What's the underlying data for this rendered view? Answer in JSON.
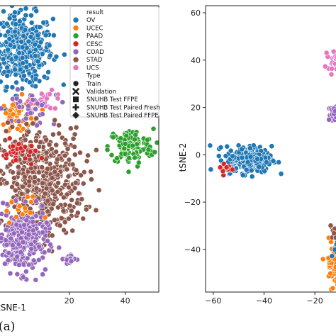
{
  "panel_label": "(a)",
  "chart_data": [
    {
      "type": "scatter",
      "panel": "left",
      "xlabel": "tSNE-1",
      "ylabel": "",
      "xticks": [
        20,
        40
      ],
      "xlim": [
        -5,
        52
      ],
      "ylim": [
        -65,
        65
      ],
      "grid": false,
      "legend": {
        "placement": "top-right",
        "sections": [
          {
            "title": "result",
            "entries": [
              {
                "label": "OV",
                "color": "#1f77b4",
                "marker": "circle"
              },
              {
                "label": "UCEC",
                "color": "#ff7f0e",
                "marker": "circle"
              },
              {
                "label": "PAAD",
                "color": "#2ca02c",
                "marker": "circle"
              },
              {
                "label": "CESC",
                "color": "#d62728",
                "marker": "circle"
              },
              {
                "label": "COAD",
                "color": "#9467bd",
                "marker": "circle"
              },
              {
                "label": "STAD",
                "color": "#8c564b",
                "marker": "circle"
              },
              {
                "label": "UCS",
                "color": "#e377c2",
                "marker": "circle"
              }
            ]
          },
          {
            "title": "Type",
            "entries": [
              {
                "label": "Train",
                "color": "#222222",
                "marker": "circle"
              },
              {
                "label": "Validation",
                "color": "#222222",
                "marker": "x"
              },
              {
                "label": "SNUHB Test FFPE",
                "color": "#222222",
                "marker": "square"
              },
              {
                "label": "SNUHB Test Paired Fresh",
                "color": "#222222",
                "marker": "plus"
              },
              {
                "label": "SNUHB Test Paired FFPE",
                "color": "#222222",
                "marker": "diamond"
              }
            ]
          }
        ]
      },
      "clusters": [
        {
          "series": "OV",
          "color": "#1f77b4",
          "cx": 3,
          "cy": 45,
          "sx": 5.5,
          "sy": 8,
          "n": 420
        },
        {
          "series": "UCEC",
          "color": "#ff7f0e",
          "cx": 2,
          "cy": 15,
          "sx": 3.5,
          "sy": 4,
          "n": 60
        },
        {
          "series": "UCS",
          "color": "#e377c2",
          "cx": 12,
          "cy": 22,
          "sx": 3,
          "sy": 2,
          "n": 25
        },
        {
          "series": "COAD",
          "color": "#9467bd",
          "cx": 5,
          "cy": 18,
          "sx": 4,
          "sy": 4,
          "n": 40
        },
        {
          "series": "PAAD",
          "color": "#2ca02c",
          "cx": 42,
          "cy": 1,
          "sx": 4,
          "sy": 4,
          "n": 120
        },
        {
          "series": "STAD",
          "color": "#8c564b",
          "cx": 10,
          "cy": -15,
          "sx": 7.5,
          "sy": 12,
          "n": 520
        },
        {
          "series": "CESC",
          "color": "#d62728",
          "cx": 2,
          "cy": -2,
          "sx": 3,
          "sy": 3,
          "n": 30
        },
        {
          "series": "COAD",
          "color": "#9467bd",
          "cx": 3,
          "cy": -42,
          "sx": 4.5,
          "sy": 7,
          "n": 280
        },
        {
          "series": "COAD",
          "color": "#9467bd",
          "cx": 20,
          "cy": -50,
          "sx": 1,
          "sy": 1.2,
          "n": 18
        },
        {
          "series": "UCEC",
          "color": "#ff7f0e",
          "cx": 3,
          "cy": -28,
          "sx": 3,
          "sy": 3,
          "n": 15
        }
      ]
    },
    {
      "type": "scatter",
      "panel": "right",
      "xlabel": "",
      "ylabel": "tSNE-2",
      "xticks": [
        -60,
        -40,
        -20
      ],
      "yticks": [
        -40,
        -20,
        0,
        20,
        40,
        60
      ],
      "xlim": [
        -63,
        -10
      ],
      "ylim": [
        -58,
        63
      ],
      "grid": false,
      "clusters": [
        {
          "series": "OV",
          "color": "#1f77b4",
          "cx": -46,
          "cy": -2,
          "sx": 4.5,
          "sy": 2.8,
          "n": 300
        },
        {
          "series": "CESC",
          "color": "#d62728",
          "cx": -55,
          "cy": -6,
          "sx": 1.5,
          "sy": 1.6,
          "n": 12
        },
        {
          "series": "UCEC",
          "color": "#ff7f0e",
          "cx": -11,
          "cy": -46,
          "sx": 2.5,
          "sy": 5,
          "n": 90
        },
        {
          "series": "OV",
          "color": "#1f77b4",
          "cx": -11,
          "cy": -38,
          "sx": 1.5,
          "sy": 2,
          "n": 20
        },
        {
          "series": "UCS",
          "color": "#e377c2",
          "cx": -12,
          "cy": 40,
          "sx": 1.4,
          "sy": 2,
          "n": 40
        },
        {
          "series": "COAD",
          "color": "#9467bd",
          "cx": -12,
          "cy": 17,
          "sx": 1.3,
          "sy": 2,
          "n": 35
        },
        {
          "series": "STAD",
          "color": "#8c564b",
          "cx": -13,
          "cy": -32,
          "sx": 1,
          "sy": 2,
          "n": 10
        }
      ]
    }
  ]
}
